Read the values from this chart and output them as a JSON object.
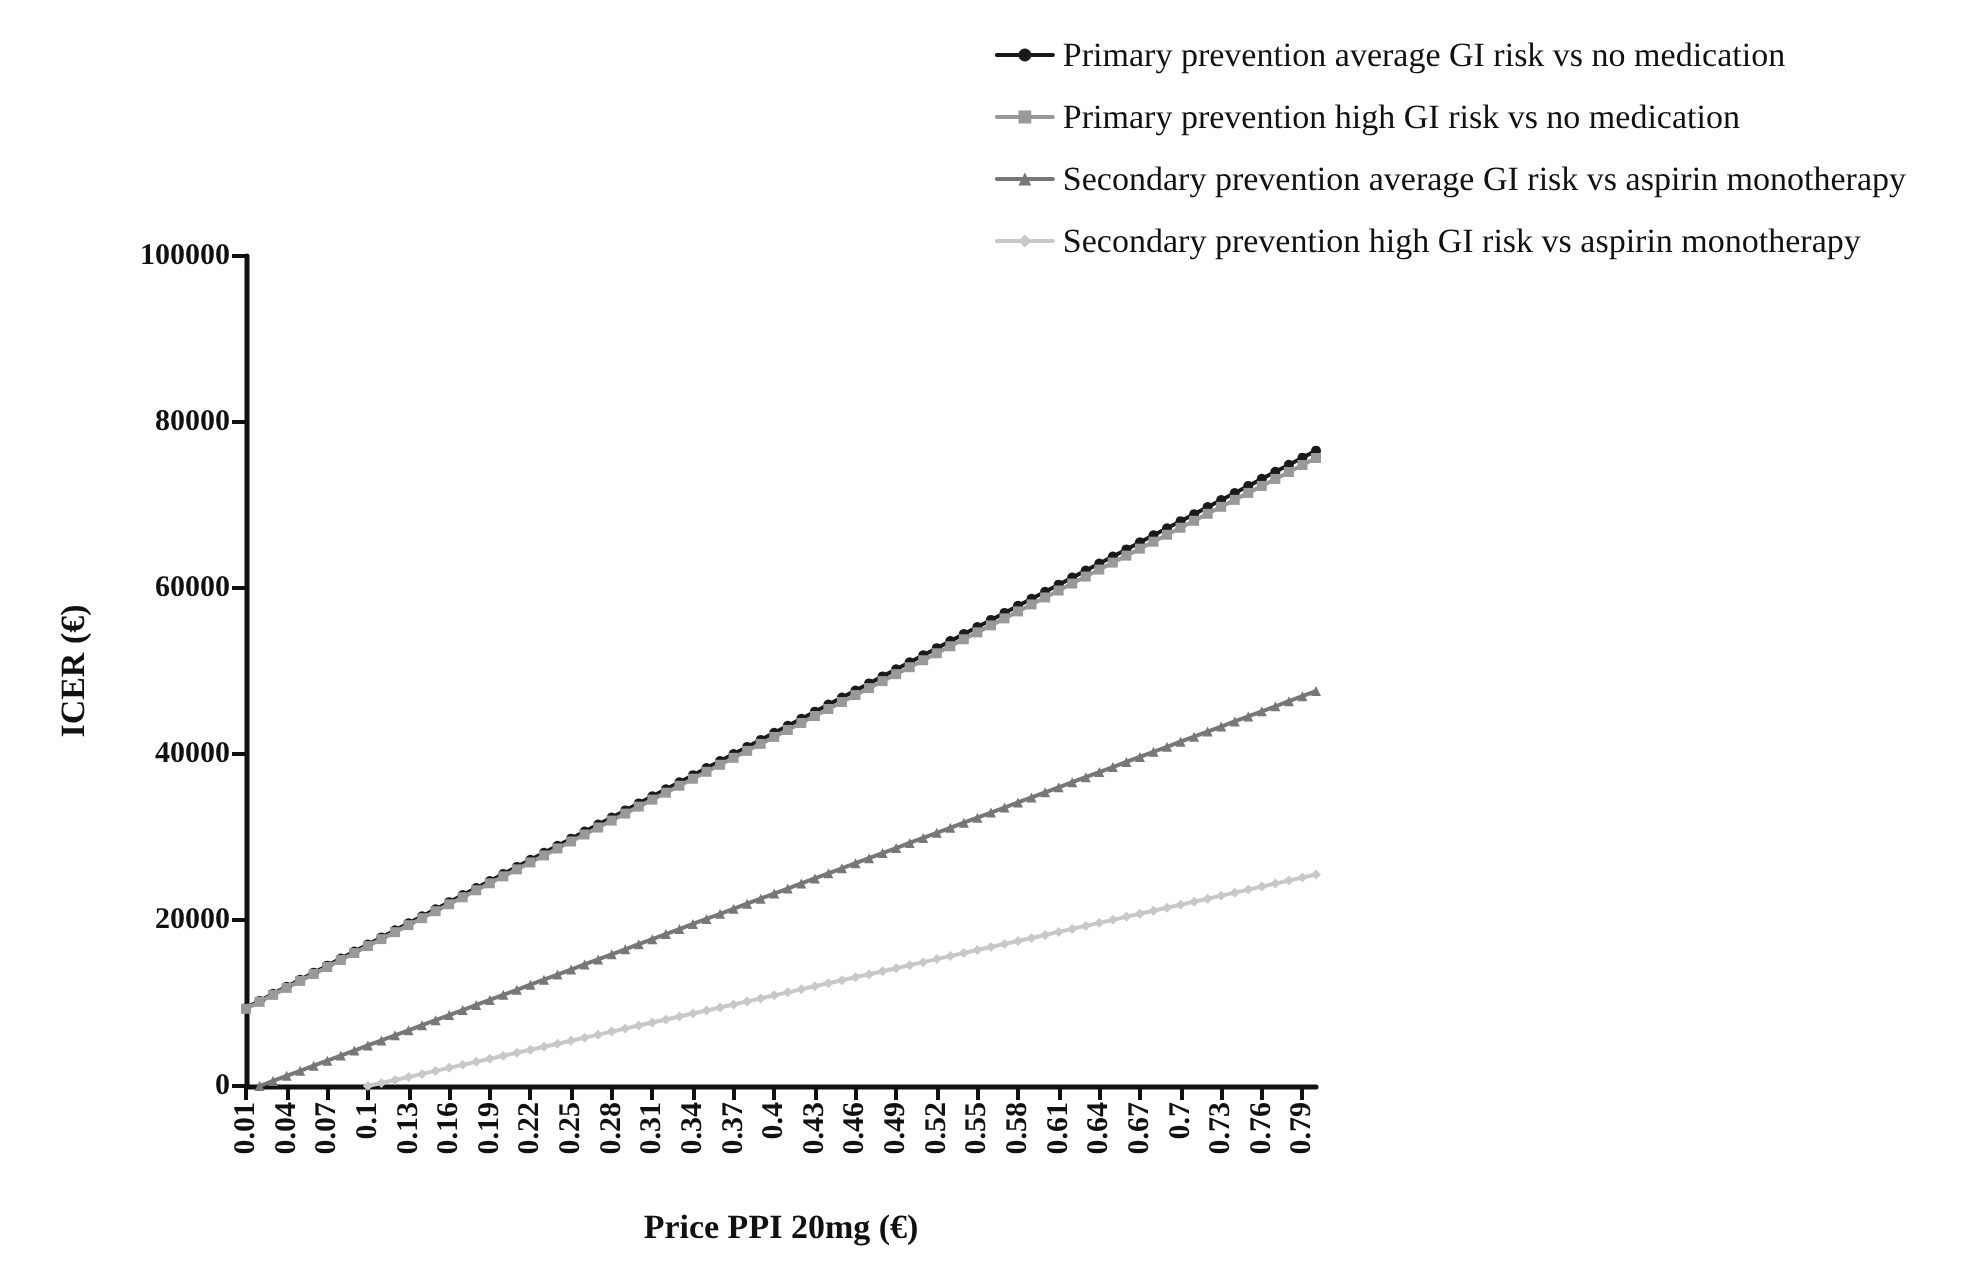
{
  "chart_data": {
    "type": "line",
    "xlabel": "Price PPI 20mg (€)",
    "ylabel": "ICER (€)",
    "categories": [
      "0.01",
      null,
      null,
      "0.04",
      null,
      null,
      "0.07",
      null,
      null,
      "0.1",
      null,
      null,
      "0.13",
      null,
      null,
      "0.16",
      null,
      null,
      "0.19",
      null,
      null,
      "0.22",
      null,
      null,
      "0.25",
      null,
      null,
      "0.28",
      null,
      null,
      "0.31",
      null,
      null,
      "0.34",
      null,
      null,
      "0.37",
      null,
      null,
      "0.4",
      null,
      null,
      "0.43",
      null,
      null,
      "0.46",
      null,
      null,
      "0.49",
      null,
      null,
      "0.52",
      null,
      null,
      "0.55",
      null,
      null,
      "0.58",
      null,
      null,
      "0.61",
      null,
      null,
      "0.64",
      null,
      null,
      "0.67",
      null,
      null,
      "0.7",
      null,
      null,
      "0.73",
      null,
      null,
      "0.76",
      null,
      null,
      "0.79",
      null
    ],
    "ylim": [
      0,
      100000
    ],
    "yticks": [
      0,
      20000,
      40000,
      60000,
      80000,
      100000
    ],
    "grid": false,
    "legend": "top right",
    "line_style": "solid",
    "series": [
      {
        "name": "Primary prevention average GI risk vs no medication",
        "color": "#1a1a1a",
        "marker": "circle",
        "values": [
          9400,
          10250,
          11100,
          11950,
          12800,
          13650,
          14500,
          15350,
          16200,
          17050,
          17900,
          18750,
          19600,
          20450,
          21300,
          22150,
          23000,
          23850,
          24700,
          25550,
          26400,
          27250,
          28100,
          28950,
          29800,
          30650,
          31500,
          32350,
          33200,
          34050,
          34900,
          35750,
          36600,
          37450,
          38300,
          39150,
          40000,
          40850,
          41700,
          42550,
          43400,
          44250,
          45100,
          45950,
          46800,
          47650,
          48500,
          49350,
          50200,
          51050,
          51900,
          52750,
          53600,
          54450,
          55300,
          56150,
          57000,
          57850,
          58700,
          59550,
          60400,
          61250,
          62100,
          62950,
          63800,
          64650,
          65500,
          66350,
          67200,
          68050,
          68900,
          69750,
          70600,
          71450,
          72300,
          73150,
          74000,
          74850,
          75700,
          76550
        ]
      },
      {
        "name": "Primary prevention high GI risk vs no medication",
        "color": "#999999",
        "marker": "square",
        "values": [
          9300,
          10140,
          10980,
          11820,
          12660,
          13500,
          14340,
          15180,
          16020,
          16860,
          17700,
          18540,
          19380,
          20220,
          21060,
          21900,
          22740,
          23580,
          24420,
          25260,
          26100,
          26940,
          27780,
          28620,
          29460,
          30300,
          31140,
          31980,
          32820,
          33660,
          34500,
          35340,
          36180,
          37020,
          37860,
          38700,
          39540,
          40380,
          41220,
          42060,
          42900,
          43740,
          44580,
          45420,
          46260,
          47100,
          47940,
          48780,
          49620,
          50460,
          51300,
          52140,
          52980,
          53820,
          54660,
          55500,
          56340,
          57180,
          58020,
          58860,
          59700,
          60540,
          61380,
          62220,
          63060,
          63900,
          64740,
          65580,
          66420,
          67260,
          68100,
          68940,
          69780,
          70620,
          71460,
          72300,
          73140,
          73980,
          74820,
          75660
        ]
      },
      {
        "name": "Secondary prevention average GI risk vs aspirin monotherapy",
        "color": "#777777",
        "marker": "triangle",
        "values": [
          null,
          0,
          610,
          1220,
          1830,
          2440,
          3050,
          3660,
          4270,
          4880,
          5490,
          6100,
          6710,
          7320,
          7930,
          8540,
          9150,
          9760,
          10370,
          10980,
          11590,
          12200,
          12810,
          13420,
          14030,
          14640,
          15250,
          15860,
          16470,
          17080,
          17690,
          18300,
          18910,
          19520,
          20130,
          20740,
          21350,
          21960,
          22570,
          23180,
          23790,
          24400,
          25010,
          25620,
          26230,
          26840,
          27450,
          28060,
          28670,
          29280,
          29890,
          30500,
          31110,
          31720,
          32330,
          32940,
          33550,
          34160,
          34770,
          35380,
          35990,
          36600,
          37210,
          37820,
          38430,
          39040,
          39650,
          40260,
          40870,
          41480,
          42090,
          42700,
          43310,
          43920,
          44530,
          45140,
          45750,
          46360,
          46970,
          47580
        ]
      },
      {
        "name": "Secondary prevention high GI risk vs aspirin monotherapy",
        "color": "#c8c8c8",
        "marker": "diamond",
        "values": [
          null,
          null,
          null,
          null,
          null,
          null,
          null,
          null,
          null,
          0,
          364,
          728,
          1092,
          1456,
          1820,
          2184,
          2548,
          2912,
          3276,
          3640,
          4004,
          4368,
          4732,
          5096,
          5460,
          5824,
          6188,
          6552,
          6916,
          7280,
          7644,
          8008,
          8372,
          8736,
          9100,
          9464,
          9828,
          10192,
          10556,
          10920,
          11284,
          11648,
          12012,
          12376,
          12740,
          13104,
          13468,
          13832,
          14196,
          14560,
          14924,
          15288,
          15652,
          16016,
          16380,
          16744,
          17108,
          17472,
          17836,
          18200,
          18564,
          18928,
          19292,
          19656,
          20020,
          20384,
          20748,
          21112,
          21476,
          21840,
          22204,
          22568,
          22932,
          23296,
          23660,
          24024,
          24388,
          24752,
          25116,
          25480
        ]
      }
    ]
  }
}
